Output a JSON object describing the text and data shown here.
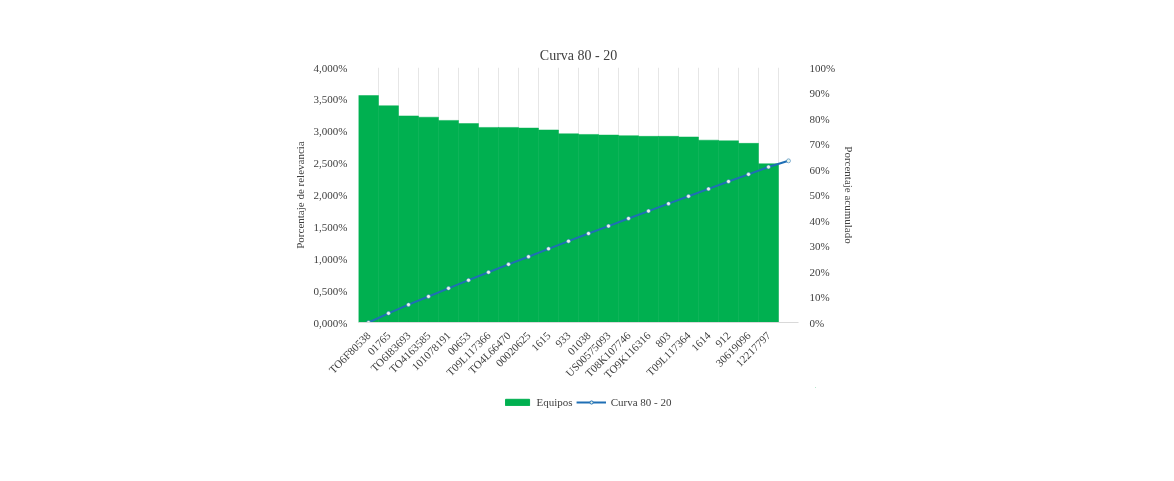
{
  "chart_data": {
    "type": "bar",
    "title": "Curva 80 - 20",
    "ylabel": "Porcentaje de relevancia",
    "y2label": "Porcentaje acumulado",
    "categories": [
      "TO6F80538",
      "01765",
      "TO6I83693",
      "TO4163585",
      "101078191",
      "00653",
      "T09L117366",
      "TO4L66470",
      "00020625",
      "1615",
      "933",
      "01038",
      "US00575093",
      "T08K107746",
      "TO9K116316",
      "803",
      "T09L117364",
      "1614",
      "912",
      "30619096",
      "12217797",
      null
    ],
    "series": [
      {
        "name": "Equipos",
        "color": "#00b050",
        "values": [
          3.56,
          3.4,
          3.24,
          3.22,
          3.17,
          3.12,
          3.06,
          3.06,
          3.05,
          3.02,
          2.96,
          2.95,
          2.94,
          2.93,
          2.92,
          2.92,
          2.91,
          2.86,
          2.85,
          2.81,
          2.49,
          null
        ]
      },
      {
        "name": "Curva 80 - 20",
        "type": "line",
        "axis": "y2",
        "color": "#1f6fb5",
        "marker": "circle",
        "values": [
          0,
          3.6,
          7.0,
          10.2,
          13.4,
          16.6,
          19.7,
          22.8,
          25.8,
          28.9,
          31.9,
          34.9,
          37.8,
          40.8,
          43.7,
          46.6,
          49.5,
          52.4,
          55.3,
          58.1,
          61.0,
          63.4
        ]
      }
    ],
    "ylim": [
      0,
      4
    ],
    "yticks": [
      {
        "value": 0,
        "label": "0,000%"
      },
      {
        "value": 0.5,
        "label": "0,500%"
      },
      {
        "value": 1,
        "label": "1,000%"
      },
      {
        "value": 1.5,
        "label": "1,500%"
      },
      {
        "value": 2,
        "label": "2,000%"
      },
      {
        "value": 2.5,
        "label": "2,500%"
      },
      {
        "value": 3,
        "label": "3,000%"
      },
      {
        "value": 3.5,
        "label": "3,500%"
      },
      {
        "value": 4,
        "label": "4,000%"
      }
    ],
    "y2lim": [
      0,
      100
    ],
    "y2ticks": [
      {
        "value": 0,
        "label": "0%"
      },
      {
        "value": 10,
        "label": "10%"
      },
      {
        "value": 20,
        "label": "20%"
      },
      {
        "value": 30,
        "label": "30%"
      },
      {
        "value": 40,
        "label": "40%"
      },
      {
        "value": 50,
        "label": "50%"
      },
      {
        "value": 60,
        "label": "60%"
      },
      {
        "value": 70,
        "label": "70%"
      },
      {
        "value": 80,
        "label": "80%"
      },
      {
        "value": 90,
        "label": "90%"
      },
      {
        "value": 100,
        "label": "100%"
      }
    ],
    "grid": "x",
    "legend": "bottom"
  }
}
